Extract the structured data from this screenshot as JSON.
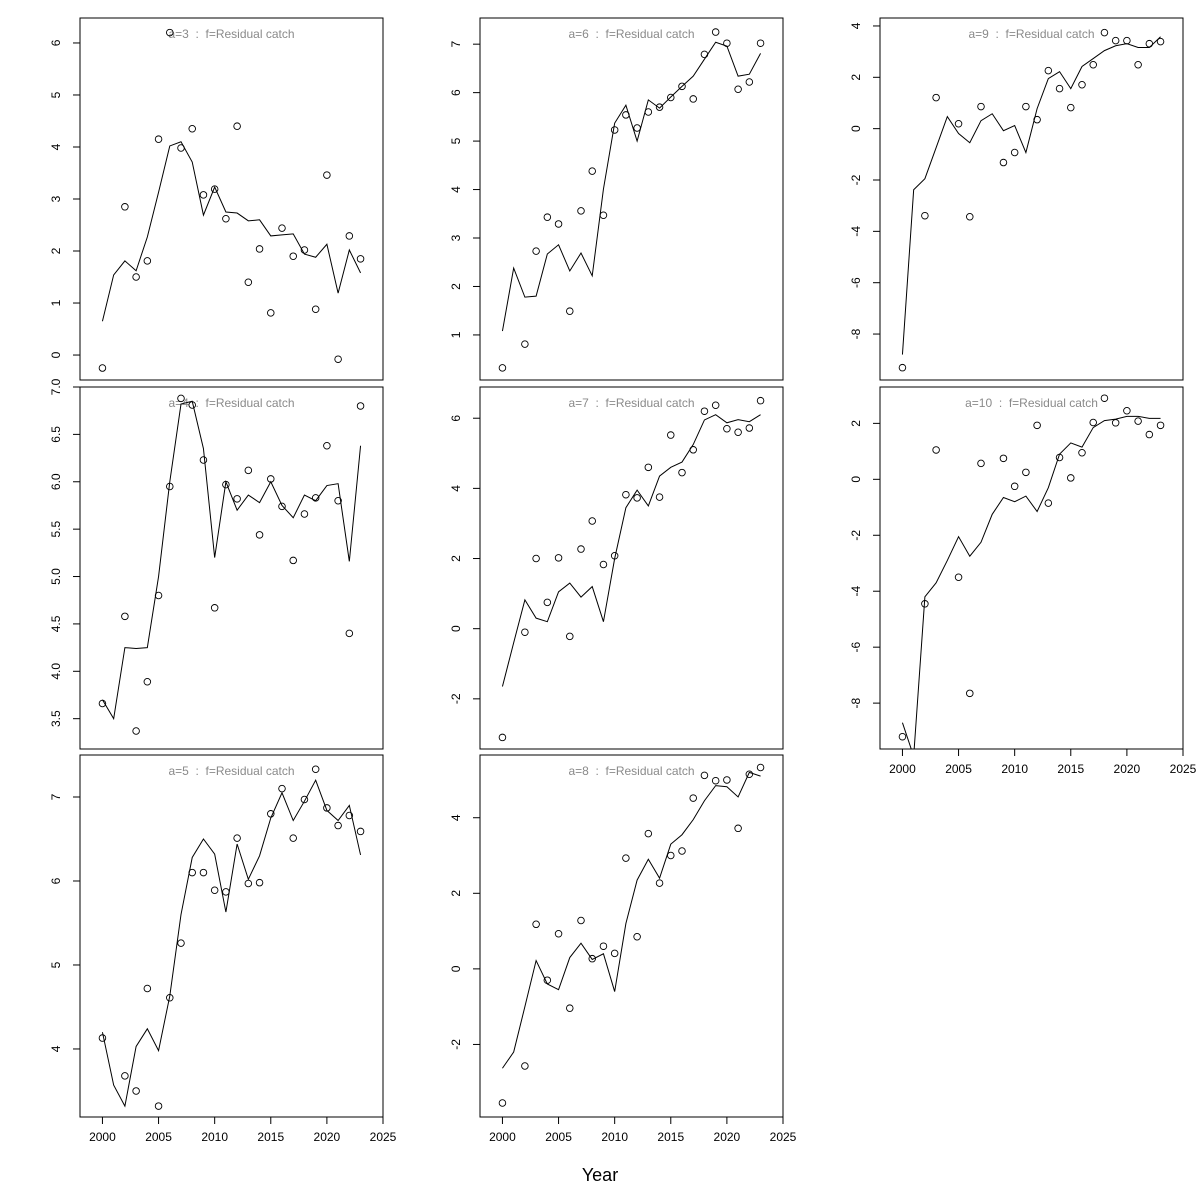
{
  "xlabel": "Year",
  "chart_data": [
    {
      "type": "line",
      "title": "a=3  :  f=Residual catch",
      "x": [
        2000,
        2001,
        2002,
        2003,
        2004,
        2005,
        2006,
        2007,
        2008,
        2009,
        2010,
        2011,
        2012,
        2013,
        2014,
        2015,
        2016,
        2017,
        2018,
        2019,
        2020,
        2021,
        2022,
        2023
      ],
      "xlim": [
        1998,
        2025
      ],
      "ylim": [
        -0.48,
        6.48
      ],
      "yticks": [
        0,
        1,
        2,
        3,
        4,
        5,
        6
      ],
      "series": [
        {
          "style": "points",
          "color": "#000000",
          "values": [
            -0.25,
            null,
            2.85,
            1.5,
            1.81,
            4.15,
            6.2,
            3.98,
            4.35,
            3.08,
            3.19,
            2.62,
            4.4,
            1.4,
            2.04,
            0.81,
            2.44,
            1.9,
            2.02,
            0.88,
            3.46,
            -0.08,
            2.29,
            1.85
          ]
        },
        {
          "style": "line",
          "color": "#000000",
          "values": [
            0.65,
            1.54,
            1.81,
            1.62,
            2.27,
            3.13,
            4.02,
            4.1,
            3.71,
            2.69,
            3.23,
            2.75,
            2.73,
            2.58,
            2.6,
            2.29,
            2.31,
            2.33,
            1.94,
            1.88,
            2.13,
            1.19,
            2.02,
            1.58
          ]
        }
      ]
    },
    {
      "type": "line",
      "title": "a=4  :  f=Residual catch",
      "x": [
        2000,
        2001,
        2002,
        2003,
        2004,
        2005,
        2006,
        2007,
        2008,
        2009,
        2010,
        2011,
        2012,
        2013,
        2014,
        2015,
        2016,
        2017,
        2018,
        2019,
        2020,
        2021,
        2022,
        2023
      ],
      "xlim": [
        1998,
        2025
      ],
      "ylim": [
        3.18,
        7.0
      ],
      "yticks": [
        {
          "value": 3.5,
          "label": "3.5"
        },
        {
          "value": 4,
          "label": "4.0"
        },
        {
          "value": 4.5,
          "label": "4.5"
        },
        {
          "value": 5,
          "label": "5.0"
        },
        {
          "value": 5.5,
          "label": "5.5"
        },
        {
          "value": 6,
          "label": "6.0"
        },
        {
          "value": 6.5,
          "label": "6.5"
        },
        {
          "value": 7,
          "label": "7.0"
        }
      ],
      "series": [
        {
          "style": "points",
          "color": "#000000",
          "values": [
            3.66,
            null,
            4.58,
            3.37,
            3.89,
            4.8,
            5.95,
            6.88,
            6.81,
            6.23,
            4.67,
            5.97,
            5.82,
            6.12,
            5.44,
            6.03,
            5.74,
            5.17,
            5.66,
            5.83,
            6.38,
            5.8,
            4.4,
            6.8
          ]
        },
        {
          "style": "line",
          "color": "#000000",
          "values": [
            3.7,
            3.5,
            4.25,
            4.24,
            4.25,
            5.0,
            6.0,
            6.82,
            6.85,
            6.35,
            5.2,
            6.0,
            5.7,
            5.86,
            5.78,
            6.0,
            5.75,
            5.62,
            5.86,
            5.8,
            5.96,
            5.98,
            5.16,
            6.38
          ]
        }
      ]
    },
    {
      "type": "line",
      "title": "a=5  :  f=Residual catch",
      "x": [
        2000,
        2001,
        2002,
        2003,
        2004,
        2005,
        2006,
        2007,
        2008,
        2009,
        2010,
        2011,
        2012,
        2013,
        2014,
        2015,
        2016,
        2017,
        2018,
        2019,
        2020,
        2021,
        2022,
        2023
      ],
      "xlim": [
        1998,
        2025
      ],
      "ylim": [
        3.19,
        7.5
      ],
      "yticks": [
        4,
        5,
        6,
        7
      ],
      "xticks": [
        2000,
        2005,
        2010,
        2015,
        2020,
        2025
      ],
      "series": [
        {
          "style": "points",
          "color": "#000000",
          "values": [
            4.13,
            null,
            3.68,
            3.5,
            4.72,
            3.32,
            4.61,
            5.26,
            6.1,
            6.1,
            5.89,
            5.87,
            6.51,
            5.97,
            5.98,
            6.8,
            7.1,
            6.51,
            6.97,
            7.33,
            6.87,
            6.66,
            6.78,
            6.59
          ]
        },
        {
          "style": "line",
          "color": "#000000",
          "values": [
            4.2,
            3.57,
            3.32,
            4.03,
            4.24,
            3.98,
            4.63,
            5.6,
            6.28,
            6.5,
            6.32,
            5.63,
            6.44,
            6.02,
            6.3,
            6.75,
            7.05,
            6.72,
            6.95,
            7.2,
            6.84,
            6.72,
            6.9,
            6.31
          ]
        }
      ]
    },
    {
      "type": "line",
      "title": "a=6  :  f=Residual catch",
      "x": [
        2000,
        2001,
        2002,
        2003,
        2004,
        2005,
        2006,
        2007,
        2008,
        2009,
        2010,
        2011,
        2012,
        2013,
        2014,
        2015,
        2016,
        2017,
        2018,
        2019,
        2020,
        2021,
        2022,
        2023
      ],
      "xlim": [
        1998,
        2025
      ],
      "ylim": [
        0.07,
        7.54
      ],
      "yticks": [
        1,
        2,
        3,
        4,
        5,
        6,
        7
      ],
      "series": [
        {
          "style": "points",
          "color": "#000000",
          "values": [
            0.32,
            null,
            0.81,
            2.73,
            3.43,
            3.29,
            1.49,
            3.56,
            4.38,
            3.47,
            5.23,
            5.54,
            5.27,
            5.6,
            5.7,
            5.9,
            6.13,
            5.87,
            6.79,
            7.25,
            7.02,
            6.07,
            6.22,
            7.02
          ]
        },
        {
          "style": "line",
          "color": "#000000",
          "values": [
            1.08,
            2.38,
            1.78,
            1.8,
            2.67,
            2.86,
            2.32,
            2.69,
            2.22,
            4.01,
            5.37,
            5.74,
            5.0,
            5.85,
            5.68,
            5.91,
            6.13,
            6.34,
            6.69,
            7.04,
            6.96,
            6.34,
            6.38,
            6.81
          ]
        }
      ]
    },
    {
      "type": "line",
      "title": "a=7  :  f=Residual catch",
      "x": [
        2000,
        2001,
        2002,
        2003,
        2004,
        2005,
        2006,
        2007,
        2008,
        2009,
        2010,
        2011,
        2012,
        2013,
        2014,
        2015,
        2016,
        2017,
        2018,
        2019,
        2020,
        2021,
        2022,
        2023
      ],
      "xlim": [
        1998,
        2025
      ],
      "ylim": [
        -3.43,
        6.89
      ],
      "yticks": [
        -2,
        0,
        2,
        4,
        6
      ],
      "series": [
        {
          "style": "points",
          "color": "#000000",
          "values": [
            -3.1,
            null,
            -0.1,
            2.0,
            0.75,
            2.02,
            -0.22,
            2.27,
            3.07,
            1.83,
            2.08,
            3.82,
            3.73,
            4.6,
            3.75,
            5.52,
            4.45,
            5.1,
            6.2,
            6.37,
            5.7,
            5.6,
            5.72,
            6.5
          ]
        },
        {
          "style": "line",
          "color": "#000000",
          "values": [
            -1.65,
            -0.4,
            0.82,
            0.3,
            0.2,
            1.05,
            1.3,
            0.9,
            1.2,
            0.2,
            2.0,
            3.45,
            3.95,
            3.5,
            4.35,
            4.6,
            4.75,
            5.25,
            5.95,
            6.1,
            5.87,
            5.96,
            5.9,
            6.1
          ]
        }
      ]
    },
    {
      "type": "line",
      "title": "a=8  :  f=Residual catch",
      "x": [
        2000,
        2001,
        2002,
        2003,
        2004,
        2005,
        2006,
        2007,
        2008,
        2009,
        2010,
        2011,
        2012,
        2013,
        2014,
        2015,
        2016,
        2017,
        2018,
        2019,
        2020,
        2021,
        2022,
        2023
      ],
      "xlim": [
        1998,
        2025
      ],
      "ylim": [
        -3.92,
        5.66
      ],
      "yticks": [
        -2,
        0,
        2,
        4
      ],
      "xticks": [
        2000,
        2005,
        2010,
        2015,
        2020,
        2025
      ],
      "series": [
        {
          "style": "points",
          "color": "#000000",
          "values": [
            -3.55,
            null,
            -2.57,
            1.18,
            -0.3,
            0.93,
            -1.04,
            1.28,
            0.27,
            0.6,
            0.41,
            2.93,
            0.85,
            3.58,
            2.27,
            3.0,
            3.12,
            4.52,
            5.12,
            4.98,
            5.0,
            3.72,
            5.15,
            5.33
          ]
        },
        {
          "style": "line",
          "color": "#000000",
          "values": [
            -2.63,
            -2.2,
            -1.0,
            0.22,
            -0.4,
            -0.55,
            0.3,
            0.68,
            0.25,
            0.4,
            -0.6,
            1.2,
            2.35,
            2.9,
            2.4,
            3.3,
            3.55,
            3.95,
            4.45,
            4.85,
            4.82,
            4.55,
            5.2,
            5.1
          ]
        }
      ]
    },
    {
      "type": "line",
      "title": "a=9  :  f=Residual catch",
      "x": [
        2000,
        2001,
        2002,
        2003,
        2004,
        2005,
        2006,
        2007,
        2008,
        2009,
        2010,
        2011,
        2012,
        2013,
        2014,
        2015,
        2016,
        2017,
        2018,
        2019,
        2020,
        2021,
        2022,
        2023
      ],
      "xlim": [
        1998,
        2025
      ],
      "ylim": [
        -9.79,
        4.31
      ],
      "yticks": [
        -8,
        -6,
        -4,
        -2,
        0,
        2,
        4
      ],
      "series": [
        {
          "style": "points",
          "color": "#000000",
          "values": [
            -9.31,
            null,
            -3.39,
            1.21,
            null,
            0.19,
            -3.43,
            0.86,
            null,
            -1.32,
            -0.93,
            0.86,
            0.35,
            2.26,
            1.56,
            0.82,
            1.71,
            2.49,
            3.74,
            3.43,
            3.43,
            2.49,
            3.31,
            3.39
          ]
        },
        {
          "style": "line",
          "color": "#000000",
          "values": [
            -8.8,
            -2.38,
            -1.95,
            -0.74,
            0.47,
            -0.19,
            -0.55,
            0.31,
            0.58,
            -0.08,
            0.12,
            -0.93,
            0.78,
            1.95,
            2.22,
            1.56,
            2.42,
            2.73,
            3.04,
            3.23,
            3.31,
            3.16,
            3.16,
            3.58
          ]
        }
      ]
    },
    {
      "type": "line",
      "title": "a=10  :  f=Residual catch",
      "x": [
        2000,
        2001,
        2002,
        2003,
        2004,
        2005,
        2006,
        2007,
        2008,
        2009,
        2010,
        2011,
        2012,
        2013,
        2014,
        2015,
        2016,
        2017,
        2018,
        2019,
        2020,
        2021,
        2022,
        2023
      ],
      "xlim": [
        1998,
        2025
      ],
      "ylim": [
        -9.64,
        3.3
      ],
      "yticks": [
        -8,
        -6,
        -4,
        -2,
        0,
        2
      ],
      "xticks": [
        2000,
        2005,
        2010,
        2015,
        2020,
        2025
      ],
      "series": [
        {
          "style": "points",
          "color": "#000000",
          "values": [
            -9.2,
            null,
            -4.45,
            1.05,
            null,
            -3.5,
            -7.65,
            0.57,
            null,
            0.75,
            -0.25,
            0.25,
            1.93,
            -0.85,
            0.78,
            0.05,
            0.95,
            2.03,
            2.9,
            2.02,
            2.45,
            2.08,
            1.6,
            1.93
          ]
        },
        {
          "style": "line",
          "color": "#000000",
          "values": [
            -8.7,
            -9.9,
            -4.2,
            -3.7,
            -2.9,
            -2.05,
            -2.75,
            -2.25,
            -1.25,
            -0.65,
            -0.8,
            -0.6,
            -1.15,
            -0.3,
            0.9,
            1.3,
            1.15,
            1.85,
            2.1,
            2.15,
            2.25,
            2.25,
            2.18,
            2.18
          ]
        }
      ]
    }
  ]
}
